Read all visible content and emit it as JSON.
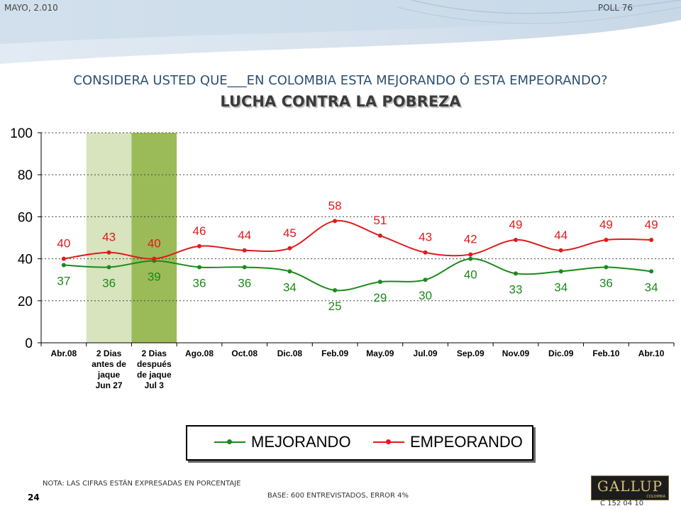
{
  "header": {
    "date": "MAYO, 2.010",
    "poll": "POLL 76"
  },
  "title": "CONSIDERA USTED QUE___EN COLOMBIA ESTA MEJORANDO Ó ESTA EMPEORANDO?",
  "subtitle": "LUCHA CONTRA LA POBREZA",
  "footer": {
    "note": "NOTA: LAS CIFRAS ESTÁN EXPRESADAS EN PORCENTAJE",
    "base": "BASE: 600 ENTREVISTADOS, ERROR 4%",
    "page": "24",
    "code": "C 152 04 10",
    "logo": "GALLUP",
    "logo_sub": "COLOMBIA"
  },
  "colors": {
    "mejorando": "#1a8a1a",
    "empeorando": "#e01b1b",
    "band_light": "#d7e4bd",
    "band_dark": "#9bbb59"
  },
  "chart_data": {
    "type": "line",
    "categories": [
      "Abr.08",
      "2 Dias\nantes de\njaque\nJun 27",
      "2 Dias\ndespués\nde jaque\nJul 3",
      "Ago.08",
      "Oct.08",
      "Dic.08",
      "Feb.09",
      "May.09",
      "Jul.09",
      "Sep.09",
      "Nov.09",
      "Dic.09",
      "Feb.10",
      "Abr.10"
    ],
    "ylim": [
      0,
      100
    ],
    "yticks": [
      0,
      20,
      40,
      60,
      80,
      100
    ],
    "grid": true,
    "highlight_categories": [
      1,
      2
    ],
    "series": [
      {
        "name": "MEJORANDO",
        "color": "#1a8a1a",
        "values": [
          37,
          36,
          39,
          36,
          36,
          34,
          25,
          29,
          30,
          40,
          33,
          34,
          36,
          34
        ]
      },
      {
        "name": "EMPEORANDO",
        "color": "#e01b1b",
        "values": [
          40,
          43,
          40,
          46,
          44,
          45,
          58,
          51,
          43,
          42,
          49,
          44,
          49,
          49
        ]
      }
    ],
    "legend_position": "bottom"
  }
}
